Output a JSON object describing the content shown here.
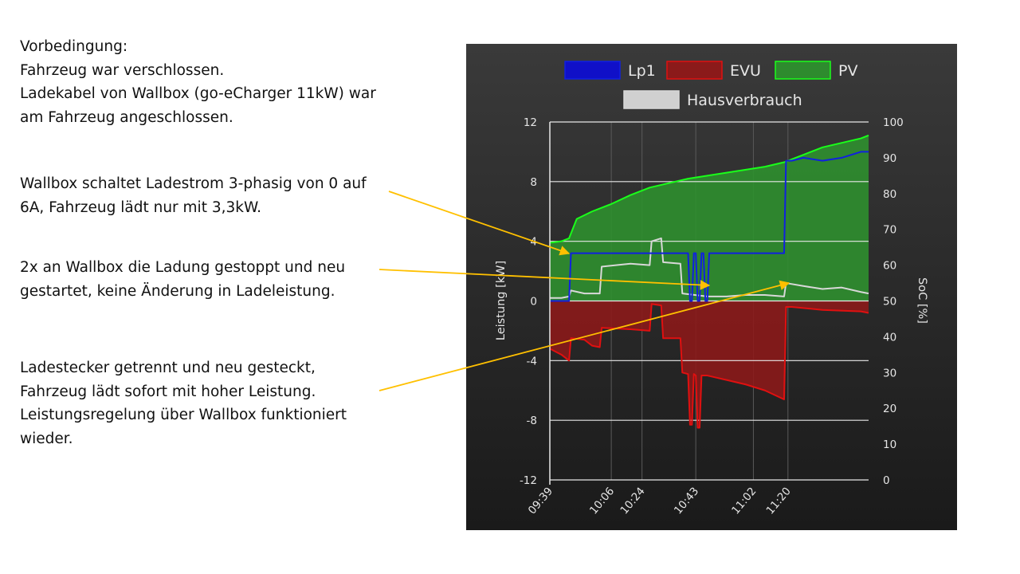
{
  "annotations": {
    "precondition": [
      "Vorbedingung:",
      "Fahrzeug war verschlossen.",
      "Ladekabel von Wallbox (go-eCharger 11kW) war",
      "am Fahrzeug angeschlossen."
    ],
    "note1": [
      "Wallbox schaltet Ladestrom 3-phasig von 0 auf",
      "6A, Fahrzeug lädt nur mit 3,3kW."
    ],
    "note2": [
      "2x an Wallbox die Ladung gestoppt und neu",
      "gestartet, keine Änderung in Ladeleistung."
    ],
    "note3": [
      "Ladestecker getrennt und neu gesteckt,",
      "Fahrzeug lädt sofort mit hoher Leistung.",
      "Leistungsregelung über Wallbox funktioniert",
      "wieder."
    ],
    "arrow_color": "#ffc000"
  },
  "chart_data": {
    "type": "area",
    "x_start_minutes": 579,
    "x_end_minutes": 662,
    "xticks": [
      "09:39",
      "10:06",
      "10:24",
      "10:43",
      "11:02",
      "11:20"
    ],
    "xtick_minutes": [
      579,
      595,
      603,
      617,
      632,
      641
    ],
    "yleft_label": "Leistung [kW]",
    "yleft_ticks": [
      12,
      8,
      4,
      0,
      -4,
      -8,
      -12
    ],
    "ylim_left": [
      -12,
      12
    ],
    "yright_label": "SoC [%]",
    "yright_ticks": [
      100,
      90,
      80,
      70,
      60,
      50,
      40,
      30,
      20,
      10,
      0
    ],
    "ylim_right": [
      0,
      100
    ],
    "grid": true,
    "legend_position": "top",
    "legend": [
      {
        "name": "Lp1",
        "color": "#1010c8"
      },
      {
        "name": "EVU",
        "color": "#8b1a1a"
      },
      {
        "name": "PV",
        "color": "#2e8b2e"
      },
      {
        "name": "Hausverbrauch",
        "color": "#d0d0d0"
      }
    ],
    "series": [
      {
        "name": "PV",
        "color": "#1aff1a",
        "fill": "#2f8f2f",
        "x": [
          579,
          582,
          584,
          586,
          590,
          595,
          600,
          605,
          610,
          615,
          620,
          625,
          630,
          635,
          640,
          645,
          650,
          655,
          660,
          662
        ],
        "y": [
          3.9,
          4.0,
          4.2,
          5.5,
          6.0,
          6.5,
          7.1,
          7.6,
          7.9,
          8.2,
          8.4,
          8.6,
          8.8,
          9.0,
          9.3,
          9.8,
          10.3,
          10.6,
          10.9,
          11.1
        ]
      },
      {
        "name": "Lp1",
        "color": "#1020e0",
        "x": [
          579,
          584,
          584.5,
          615,
          615.5,
          616,
          616.5,
          617,
          617.5,
          618,
          618.5,
          619,
          619.5,
          620,
          620.5,
          640,
          640.5,
          642,
          645,
          650,
          655,
          660,
          662
        ],
        "y": [
          0,
          0,
          3.2,
          3.2,
          0,
          0,
          3.2,
          3.2,
          0,
          0,
          3.2,
          3.2,
          0,
          0,
          3.2,
          3.2,
          9.4,
          9.4,
          9.6,
          9.4,
          9.6,
          10.0,
          10.0
        ]
      },
      {
        "name": "EVU",
        "color": "#e01010",
        "fill": "#8b1a1a",
        "x": [
          579,
          582,
          584,
          584.5,
          588,
          590,
          592,
          592.5,
          600,
          605,
          605.5,
          608,
          608.5,
          613,
          613.5,
          615,
          615.5,
          616,
          616.5,
          617,
          617.5,
          618,
          618.5,
          620,
          625,
          630,
          635,
          640,
          640.5,
          642,
          650,
          660,
          662
        ],
        "y": [
          -3.2,
          -3.6,
          -4.0,
          -2.5,
          -2.6,
          -3.0,
          -3.1,
          -1.8,
          -1.9,
          -2.0,
          -0.2,
          -0.3,
          -2.5,
          -2.5,
          -4.8,
          -4.9,
          -8.3,
          -8.3,
          -4.9,
          -5.0,
          -8.5,
          -8.5,
          -5.0,
          -5.0,
          -5.3,
          -5.6,
          -6.0,
          -6.6,
          -0.4,
          -0.4,
          -0.6,
          -0.7,
          -0.8
        ]
      },
      {
        "name": "Hausverbrauch",
        "color": "#d8d8d8",
        "x": [
          579,
          582,
          584,
          584.5,
          588,
          592,
          592.5,
          600,
          605,
          605.5,
          608,
          608.5,
          613,
          613.5,
          620,
          625,
          630,
          635,
          640,
          640.5,
          645,
          650,
          655,
          660,
          662
        ],
        "y": [
          0.2,
          0.2,
          0.3,
          0.7,
          0.5,
          0.5,
          2.3,
          2.5,
          2.4,
          4.0,
          4.2,
          2.6,
          2.5,
          0.5,
          0.3,
          0.3,
          0.4,
          0.4,
          0.3,
          1.2,
          1.0,
          0.8,
          0.9,
          0.6,
          0.5
        ]
      }
    ]
  }
}
